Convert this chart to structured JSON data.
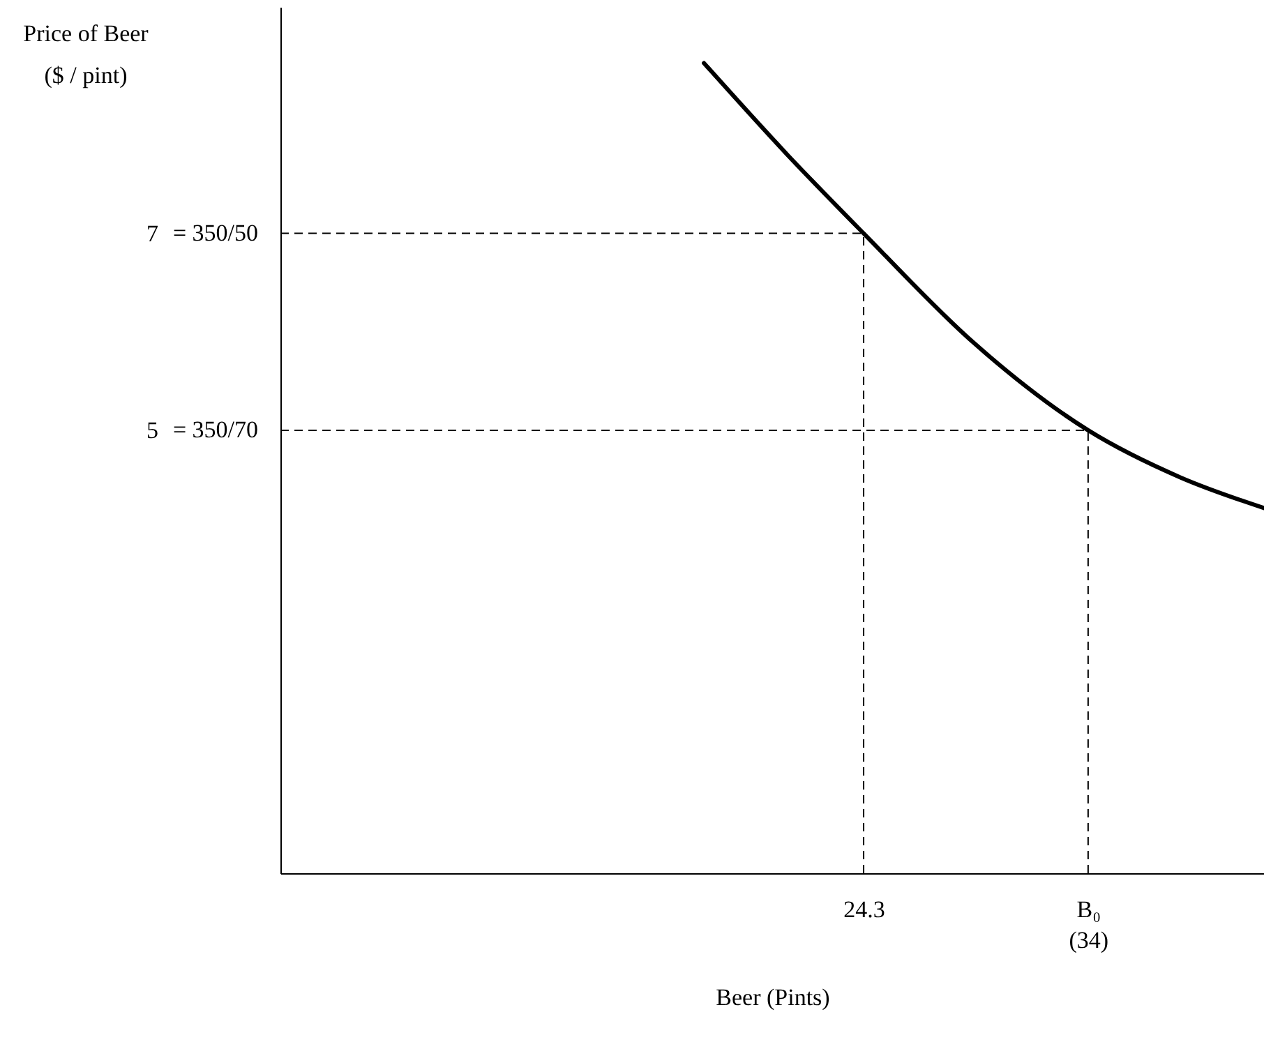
{
  "chart_data": {
    "type": "line",
    "xlabel": "Beer (Pints)",
    "ylabel": "Price of Beer\n($ / pint)",
    "x": [
      17.4,
      21,
      24.3,
      29,
      34,
      38,
      41.6
    ],
    "series": [
      {
        "color": "#000000",
        "values": [
          8.73,
          7.8,
          7,
          5.9,
          5,
          4.52,
          4.21
        ]
      }
    ],
    "xlim": [
      -0.9,
      41.6
    ],
    "ylim": [
      0.5,
      9.3
    ],
    "xticks": [
      24.3,
      {
        "value": 34,
        "label": "B₀\n(34)"
      }
    ],
    "yticks": [
      7,
      5
    ],
    "annotations": [
      "= 350/50",
      "= 350/70"
    ],
    "ref_lines": [
      {
        "axis": "y",
        "value": 7,
        "line_style": "dashed",
        "color": "#000000"
      },
      {
        "axis": "x",
        "value": 24.3,
        "line_style": "dashed",
        "color": "#000000"
      },
      {
        "axis": "y",
        "value": 5,
        "line_style": "dashed",
        "color": "#000000"
      },
      {
        "axis": "x",
        "value": 34,
        "line_style": "dashed",
        "color": "#000000"
      }
    ],
    "grid": false,
    "marker": "none",
    "line_style": "solid"
  }
}
